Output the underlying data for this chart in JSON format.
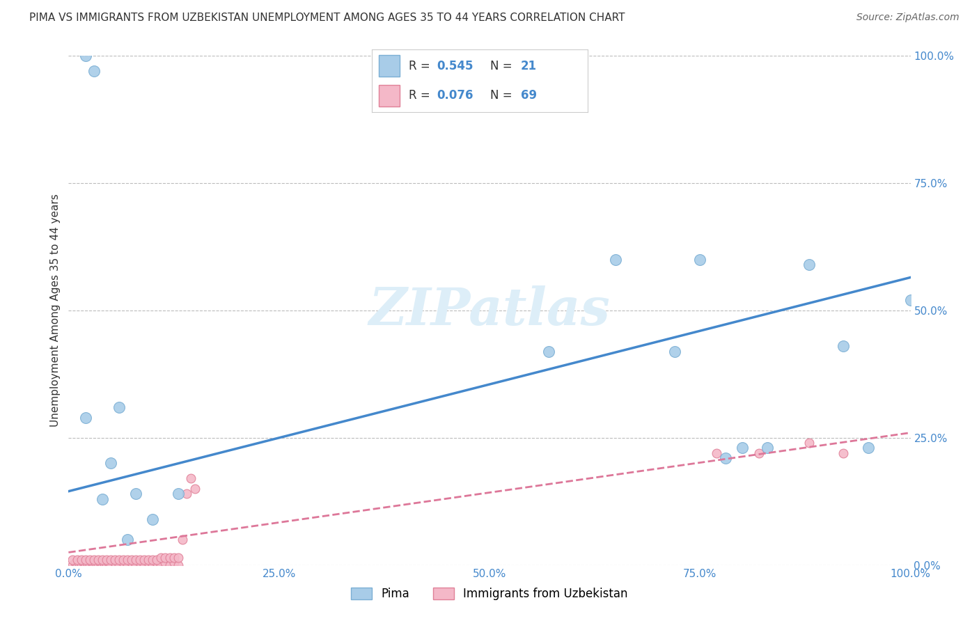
{
  "title": "PIMA VS IMMIGRANTS FROM UZBEKISTAN UNEMPLOYMENT AMONG AGES 35 TO 44 YEARS CORRELATION CHART",
  "source": "Source: ZipAtlas.com",
  "ylabel": "Unemployment Among Ages 35 to 44 years",
  "xlim": [
    0,
    1.0
  ],
  "ylim": [
    0,
    1.0
  ],
  "xticks": [
    0.0,
    0.25,
    0.5,
    0.75,
    1.0
  ],
  "yticks": [
    0.0,
    0.25,
    0.5,
    0.75,
    1.0
  ],
  "xtick_labels": [
    "0.0%",
    "25.0%",
    "50.0%",
    "75.0%",
    "100.0%"
  ],
  "ytick_labels": [
    "0.0%",
    "25.0%",
    "50.0%",
    "75.0%",
    "100.0%"
  ],
  "pima_color": "#A8CCE8",
  "pima_edge_color": "#7BAFD4",
  "uzbek_color": "#F4B8C8",
  "uzbek_edge_color": "#E08098",
  "trend_blue_color": "#4488CC",
  "trend_pink_color": "#DD7799",
  "background_color": "#FFFFFF",
  "grid_color": "#BBBBBB",
  "watermark_color": "#DDEEF8",
  "legend_label1": "Pima",
  "legend_label2": "Immigrants from Uzbekistan",
  "pima_x": [
    0.02,
    0.03,
    0.04,
    0.05,
    0.06,
    0.07,
    0.08,
    0.65,
    0.72,
    0.75,
    0.78,
    0.8,
    0.83,
    0.88,
    0.92,
    0.95,
    1.0,
    0.1,
    0.13,
    0.02,
    0.57
  ],
  "pima_y": [
    1.0,
    0.97,
    0.13,
    0.2,
    0.31,
    0.05,
    0.14,
    0.6,
    0.42,
    0.6,
    0.21,
    0.23,
    0.23,
    0.59,
    0.43,
    0.23,
    0.52,
    0.09,
    0.14,
    0.29,
    0.42
  ],
  "uzbek_x": [
    0.005,
    0.008,
    0.01,
    0.012,
    0.015,
    0.018,
    0.02,
    0.022,
    0.025,
    0.028,
    0.03,
    0.032,
    0.035,
    0.038,
    0.04,
    0.042,
    0.045,
    0.048,
    0.05,
    0.055,
    0.06,
    0.065,
    0.07,
    0.075,
    0.08,
    0.085,
    0.09,
    0.095,
    0.1,
    0.105,
    0.11,
    0.115,
    0.12,
    0.125,
    0.13,
    0.005,
    0.01,
    0.015,
    0.02,
    0.025,
    0.03,
    0.035,
    0.04,
    0.045,
    0.05,
    0.055,
    0.06,
    0.065,
    0.07,
    0.075,
    0.08,
    0.085,
    0.09,
    0.095,
    0.1,
    0.105,
    0.11,
    0.115,
    0.12,
    0.125,
    0.13,
    0.135,
    0.14,
    0.145,
    0.15,
    0.77,
    0.82,
    0.88,
    0.92
  ],
  "uzbek_y": [
    0.0,
    0.005,
    0.0,
    0.005,
    0.0,
    0.005,
    0.0,
    0.005,
    0.0,
    0.005,
    0.0,
    0.005,
    0.0,
    0.005,
    0.0,
    0.005,
    0.0,
    0.005,
    0.0,
    0.005,
    0.0,
    0.005,
    0.0,
    0.005,
    0.0,
    0.005,
    0.0,
    0.005,
    0.0,
    0.005,
    0.0,
    0.005,
    0.0,
    0.005,
    0.0,
    0.01,
    0.01,
    0.01,
    0.01,
    0.01,
    0.01,
    0.01,
    0.01,
    0.01,
    0.01,
    0.01,
    0.01,
    0.01,
    0.01,
    0.01,
    0.01,
    0.01,
    0.01,
    0.01,
    0.01,
    0.01,
    0.015,
    0.015,
    0.015,
    0.015,
    0.015,
    0.05,
    0.14,
    0.17,
    0.15,
    0.22,
    0.22,
    0.24,
    0.22
  ],
  "pima_trend_x0": 0.0,
  "pima_trend_y0": 0.145,
  "pima_trend_x1": 1.0,
  "pima_trend_y1": 0.565,
  "uzbek_trend_x0": 0.0,
  "uzbek_trend_y0": 0.025,
  "uzbek_trend_x1": 1.0,
  "uzbek_trend_y1": 0.26,
  "pima_marker_size": 130,
  "uzbek_marker_size": 85,
  "title_fontsize": 11,
  "axis_label_fontsize": 11,
  "tick_fontsize": 11,
  "legend_fontsize": 13,
  "source_fontsize": 10
}
